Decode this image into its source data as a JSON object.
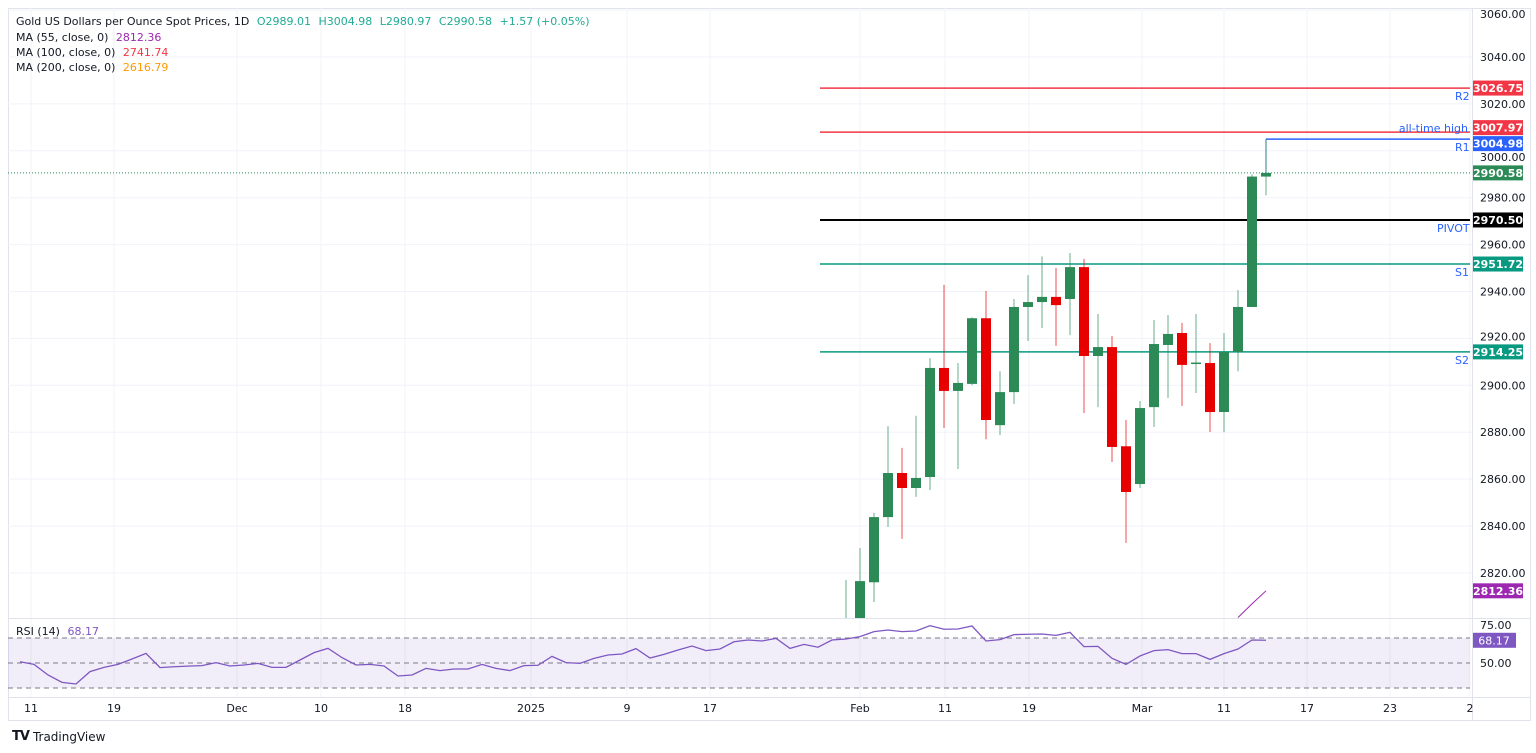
{
  "header": {
    "symbol": "Gold US Dollars per Ounce Spot Prices, 1D",
    "open": "O2989.01",
    "high": "H3004.98",
    "low": "L2980.97",
    "close": "C2990.58",
    "change": "+1.57 (+0.05%)"
  },
  "indicators": [
    {
      "label": "MA (55, close, 0)",
      "value": "2812.36",
      "color": "#9c27b0"
    },
    {
      "label": "MA (100, close, 0)",
      "value": "2741.74",
      "color": "#f23645"
    },
    {
      "label": "MA (200, close, 0)",
      "value": "2616.79",
      "color": "#ff9800"
    }
  ],
  "rsi_legend": {
    "label": "RSI (14)",
    "value": "68.17"
  },
  "footer": {
    "brand": "TradingView"
  },
  "colors": {
    "up": "#2b8a55",
    "down": "#e60000",
    "resistance": "#f23645",
    "support": "#089981",
    "pivot": "#000000",
    "ath": "#2962ff",
    "ma55": "#9c27b0",
    "rsi": "#7e57c2",
    "label_text": "#2962ff"
  },
  "chart_data": {
    "type": "candlestick",
    "title": "Gold US Dollars per Ounce Spot Prices, 1D",
    "ylim": [
      2800,
      3060
    ],
    "y_ticks": [
      "3060.00",
      "3040.00",
      "3020.00",
      "3000.00",
      "2980.00",
      "2960.00",
      "2940.00",
      "2920.00",
      "2900.00",
      "2880.00",
      "2860.00",
      "2840.00",
      "2820.00"
    ],
    "x_ticks": [
      "11",
      "19",
      "Dec",
      "10",
      "18",
      "2025",
      "9",
      "17",
      "Feb",
      "11",
      "19",
      "Mar",
      "11",
      "17",
      "23",
      "2"
    ],
    "grid": true,
    "candles": [
      {
        "o": 2790,
        "h": 2817,
        "l": 2785,
        "c": 2798
      },
      {
        "o": 2798,
        "h": 2830.6,
        "l": 2795,
        "c": 2816.5
      },
      {
        "o": 2816,
        "h": 2845.6,
        "l": 2807.6,
        "c": 2843.8
      },
      {
        "o": 2843.8,
        "h": 2882.6,
        "l": 2839.6,
        "c": 2862.6
      },
      {
        "o": 2862.6,
        "h": 2873.3,
        "l": 2834.5,
        "c": 2856.2
      },
      {
        "o": 2856.2,
        "h": 2887,
        "l": 2852.4,
        "c": 2860.5
      },
      {
        "o": 2860.9,
        "h": 2911.6,
        "l": 2855.3,
        "c": 2907.4
      },
      {
        "o": 2907.4,
        "h": 2942.8,
        "l": 2881.8,
        "c": 2897.6
      },
      {
        "o": 2897.6,
        "h": 2909.5,
        "l": 2864.3,
        "c": 2901
      },
      {
        "o": 2900.6,
        "h": 2929,
        "l": 2900,
        "c": 2928.6
      },
      {
        "o": 2928.6,
        "h": 2940.2,
        "l": 2877,
        "c": 2885.2
      },
      {
        "o": 2883,
        "h": 2906,
        "l": 2878.8,
        "c": 2897.1
      },
      {
        "o": 2897.1,
        "h": 2936.8,
        "l": 2892,
        "c": 2933.4
      },
      {
        "o": 2933.4,
        "h": 2947,
        "l": 2918.9,
        "c": 2935.5
      },
      {
        "o": 2935.5,
        "h": 2955,
        "l": 2924.4,
        "c": 2937.7
      },
      {
        "o": 2937.7,
        "h": 2950,
        "l": 2916.8,
        "c": 2934.2
      },
      {
        "o": 2936.8,
        "h": 2956.4,
        "l": 2921.4,
        "c": 2950.4
      },
      {
        "o": 2950.4,
        "h": 2953.9,
        "l": 2888.2,
        "c": 2912.5
      },
      {
        "o": 2912.5,
        "h": 2930.4,
        "l": 2890.7,
        "c": 2916.3
      },
      {
        "o": 2916.3,
        "h": 2921,
        "l": 2867.3,
        "c": 2873.7
      },
      {
        "o": 2874,
        "h": 2885.2,
        "l": 2832.8,
        "c": 2854.5
      },
      {
        "o": 2857.9,
        "h": 2893.3,
        "l": 2856.2,
        "c": 2890.3
      },
      {
        "o": 2890.7,
        "h": 2927.8,
        "l": 2882.2,
        "c": 2917.6
      },
      {
        "o": 2917.2,
        "h": 2930,
        "l": 2894.6,
        "c": 2921.9
      },
      {
        "o": 2922.3,
        "h": 2926.6,
        "l": 2891.2,
        "c": 2908.7
      },
      {
        "o": 2909.3,
        "h": 2930.4,
        "l": 2896.7,
        "c": 2909.7
      },
      {
        "o": 2909.5,
        "h": 2918,
        "l": 2880.1,
        "c": 2888.6
      },
      {
        "o": 2888.6,
        "h": 2922.3,
        "l": 2880,
        "c": 2914.2
      },
      {
        "o": 2914.2,
        "h": 2940.6,
        "l": 2906,
        "c": 2933.4
      },
      {
        "o": 2933.4,
        "h": 2990,
        "l": 2933.4,
        "c": 2989.01
      },
      {
        "o": 2989.01,
        "h": 3004.98,
        "l": 2980.97,
        "c": 2990.58
      }
    ],
    "last_price": {
      "value": 2990.58,
      "label": "2990.58"
    },
    "ma55_tail": [
      2801,
      2806.8,
      2812.36
    ],
    "ma55_tag": "2812.36",
    "levels": [
      {
        "name": "R2",
        "value": 3026.75,
        "label": "3026.75",
        "color": "#f23645"
      },
      {
        "name": "R1",
        "value": 3007.97,
        "label": "3007.97",
        "color": "#f23645"
      },
      {
        "name": "PIVOT",
        "value": 2970.5,
        "label": "2970.50",
        "color": "#000000"
      },
      {
        "name": "S1",
        "value": 2951.72,
        "label": "2951.72",
        "color": "#089981"
      },
      {
        "name": "S2",
        "value": 2914.25,
        "label": "2914.25",
        "color": "#089981"
      }
    ],
    "all_time_high": {
      "text": "all-time high",
      "value": 3004.98,
      "label": "3004.98",
      "color": "#2962ff"
    },
    "rsi": {
      "period": 14,
      "ylim": [
        20,
        85
      ],
      "bands": [
        70,
        50,
        30
      ],
      "y_ticks": [
        "75.00",
        "50.00"
      ],
      "last_label": "68.17",
      "values": [
        51,
        48.9,
        40.4,
        34.5,
        33.2,
        43.1,
        46.5,
        48.9,
        53.2,
        57.7,
        46.3,
        47,
        47.5,
        47.9,
        50.3,
        47.6,
        48.4,
        49.7,
        46.5,
        46.5,
        52.4,
        58.3,
        61.7,
        54.3,
        48.4,
        48.9,
        47.6,
        39.6,
        40.4,
        45.7,
        43.9,
        45.2,
        45.2,
        48.9,
        45.7,
        43.9,
        47.9,
        48.2,
        55.3,
        50.3,
        49.7,
        53.7,
        56.4,
        57.2,
        61.5,
        54,
        56.9,
        60.4,
        63.6,
        59.9,
        61.2,
        67,
        68.4,
        67.6,
        69.7,
        61.7,
        64.9,
        62.6,
        68.4,
        69.2,
        71.1,
        75.1,
        76.4,
        75.1,
        75.6,
        79.9,
        77,
        77.2,
        79.6,
        67.6,
        68.7,
        72.7,
        73,
        73.2,
        72.1,
        74.5,
        63.1,
        63.3,
        53.7,
        48.9,
        55.6,
        59.9,
        60.7,
        57.5,
        57.5,
        52.9,
        57.5,
        61.2,
        68.4,
        68.17
      ]
    }
  }
}
